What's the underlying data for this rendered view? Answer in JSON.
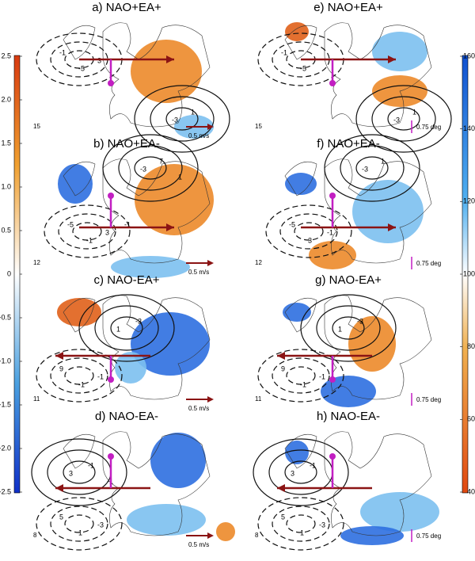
{
  "panels": [
    {
      "title": "a) NAO+EA+",
      "count": "15",
      "scale_label": "0.5 m/s",
      "contour_labels": [
        "-1",
        "-3",
        "-5",
        "1",
        "3"
      ]
    },
    {
      "title": "b) NAO+EA-",
      "count": "12",
      "scale_label": "0.5 m/s",
      "contour_labels": [
        "-5",
        "-3",
        "-1",
        "7",
        "3",
        "1",
        "-1"
      ]
    },
    {
      "title": "c) NAO-EA+",
      "count": "11",
      "scale_label": "0.5 m/s",
      "contour_labels": [
        "9",
        "1",
        "-1",
        "-3",
        "-1"
      ]
    },
    {
      "title": "d) NAO-EA-",
      "count": "8",
      "scale_label": "0.5 m/s",
      "contour_labels": [
        "5",
        "3",
        "1",
        "-1",
        "-3",
        "-1"
      ]
    },
    {
      "title": "e) NAO+EA+",
      "count": "15",
      "scale_label": "0.75 deg",
      "contour_labels": [
        "-1",
        "-3",
        "-5",
        "1"
      ]
    },
    {
      "title": "f) NAO+EA-",
      "count": "12",
      "scale_label": "0.75 deg",
      "contour_labels": [
        "-5",
        "-3",
        "3",
        "1",
        "-1"
      ]
    },
    {
      "title": "g) NAO-EA+",
      "count": "11",
      "scale_label": "0.75 deg",
      "contour_labels": [
        "9",
        "1",
        "-1",
        "-3",
        "-1"
      ]
    },
    {
      "title": "h) NAO-EA-",
      "count": "8",
      "scale_label": "0.75 deg",
      "contour_labels": [
        "5",
        "3",
        "1",
        "-1",
        "-3"
      ]
    }
  ],
  "left_colorbar": {
    "ticks": [
      "2.5",
      "2.0",
      "1.5",
      "1.0",
      "0.5",
      "0",
      "-0.5",
      "-1.0",
      "-1.5",
      "-2.0",
      "-2.5"
    ]
  },
  "right_colorbar": {
    "ticks": [
      "160",
      "140",
      "120",
      "100",
      "80",
      "60",
      "40"
    ]
  }
}
